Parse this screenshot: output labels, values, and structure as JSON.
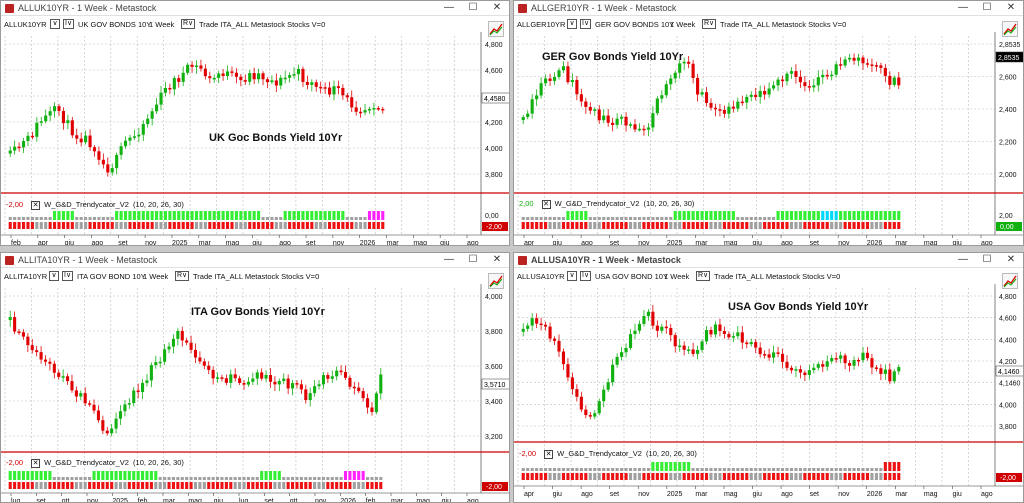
{
  "windows": [
    {
      "id": "uk",
      "window_title": "ALLUK10YR - 1 Week - Metastock",
      "symbol": "ALLUK10YR",
      "description": "UK GOV BONDS 10Y",
      "period": "1 Week",
      "toolbar_text": "Trade  ITA_ALL  Metastock  Stocks  V=0",
      "chart_title": "UK Goc Bonds Yield 10Yr",
      "y_ticks": [
        "4,800",
        "4,600",
        "4,400",
        "4,200",
        "4,000",
        "3,800"
      ],
      "last_value": "4,4580",
      "indicator_name": "W_G&D_Trendycator_V2",
      "indicator_params": "(10,  20,  26,  30)",
      "indicator_value": "-2,00",
      "indicator_right_top": "0,00",
      "indicator_right_bottom": "-2,00",
      "x_labels": [
        "feb",
        "apr",
        "giu",
        "ago",
        "set",
        "nov",
        "2025",
        "mar",
        "mag",
        "giu",
        "ago",
        "set",
        "nov",
        "2026",
        "mar",
        "mag",
        "giu",
        "ago"
      ]
    },
    {
      "id": "ger",
      "window_title": "ALLGER10YR - 1 Week - Metastock",
      "symbol": "ALLGER10YR",
      "description": "GER GOV BONDS 10Y",
      "period": "1 Week",
      "toolbar_text": "Trade  ITA_ALL  Metastock  Stocks  V=0",
      "chart_title": "GER Gov Bonds Yield 10Yr",
      "y_ticks": [
        "2,8535",
        "2,600",
        "2,400",
        "2,200",
        "2,000"
      ],
      "last_value": "2,8535",
      "indicator_name": "W_G&D_Trendycator_V2",
      "indicator_params": "(10,  20,  26,  30)",
      "indicator_value": "2,00",
      "indicator_right_top": "2,00",
      "indicator_right_bottom": "0,00",
      "x_labels": [
        "apr",
        "giu",
        "ago",
        "set",
        "nov",
        "2025",
        "mar",
        "mag",
        "giu",
        "ago",
        "set",
        "nov",
        "2026",
        "mar",
        "mag",
        "giu",
        "ago"
      ]
    },
    {
      "id": "ita",
      "window_title": "ALLITA10YR - 1 Week - Metastock",
      "symbol": "ALLITA10YR",
      "description": "ITA GOV BOND 10Y",
      "period": "1 Week",
      "toolbar_text": "Trade  ITA_ALL  Metastock  Stocks  V=0",
      "chart_title": "ITA Gov Bonds Yield 10Yr",
      "y_ticks": [
        "4,000",
        "3,800",
        "3,600",
        "3,400",
        "3,200"
      ],
      "last_value": "3,5710",
      "indicator_name": "W_G&D_Trendycator_V2",
      "indicator_params": "(10,  20,  26,  30)",
      "indicator_value": "-2,00",
      "indicator_right_top": "",
      "indicator_right_bottom": "-2,00",
      "x_labels": [
        "lug",
        "set",
        "ott",
        "nov",
        "2025",
        "feb",
        "mar",
        "mag",
        "giu",
        "lug",
        "set",
        "ott",
        "nov",
        "2026",
        "feb",
        "mar",
        "mag",
        "giu",
        "ago"
      ]
    },
    {
      "id": "usa",
      "window_title": "ALLUSA10YR - 1 Week - Metastock",
      "symbol": "ALLUSA10YR",
      "description": "USA GOV BOND 10Y",
      "period": "1 Week",
      "toolbar_text": "Trade  ITA_ALL  Metastock  Stocks  V=0",
      "chart_title": "USA Gov Bonds Yield 10Yr",
      "y_ticks": [
        "4,800",
        "4,600",
        "4,400",
        "4,200",
        "4,1460",
        "4,000",
        "3,800"
      ],
      "last_value": "4,1460",
      "indicator_name": "W_G&D_Trendycator_V2",
      "indicator_params": "(10,  20,  26,  30)",
      "indicator_value": "-2,00",
      "indicator_right_top": "",
      "indicator_right_bottom": "-2,00",
      "x_labels": [
        "apr",
        "giu",
        "ago",
        "set",
        "nov",
        "2025",
        "mar",
        "mag",
        "giu",
        "ago",
        "set",
        "nov",
        "2026",
        "mar",
        "mag",
        "giu",
        "ago"
      ]
    }
  ],
  "window_controls": {
    "minimize": "—",
    "maximize": "☐",
    "close": "✕"
  },
  "toolbar_boxes": {
    "box1": "∨",
    "box2": "I∨",
    "box3": "R∨"
  },
  "colors": {
    "bull": "#10b010",
    "bear": "#e00000",
    "line": "#cc0000",
    "grid": "#bdbdbd",
    "hist_green": "#33ee33",
    "hist_red": "#ee1111",
    "hist_gray": "#a0a0a0",
    "hist_cyan": "#00d8ff",
    "hist_magenta": "#ff22ff"
  }
}
